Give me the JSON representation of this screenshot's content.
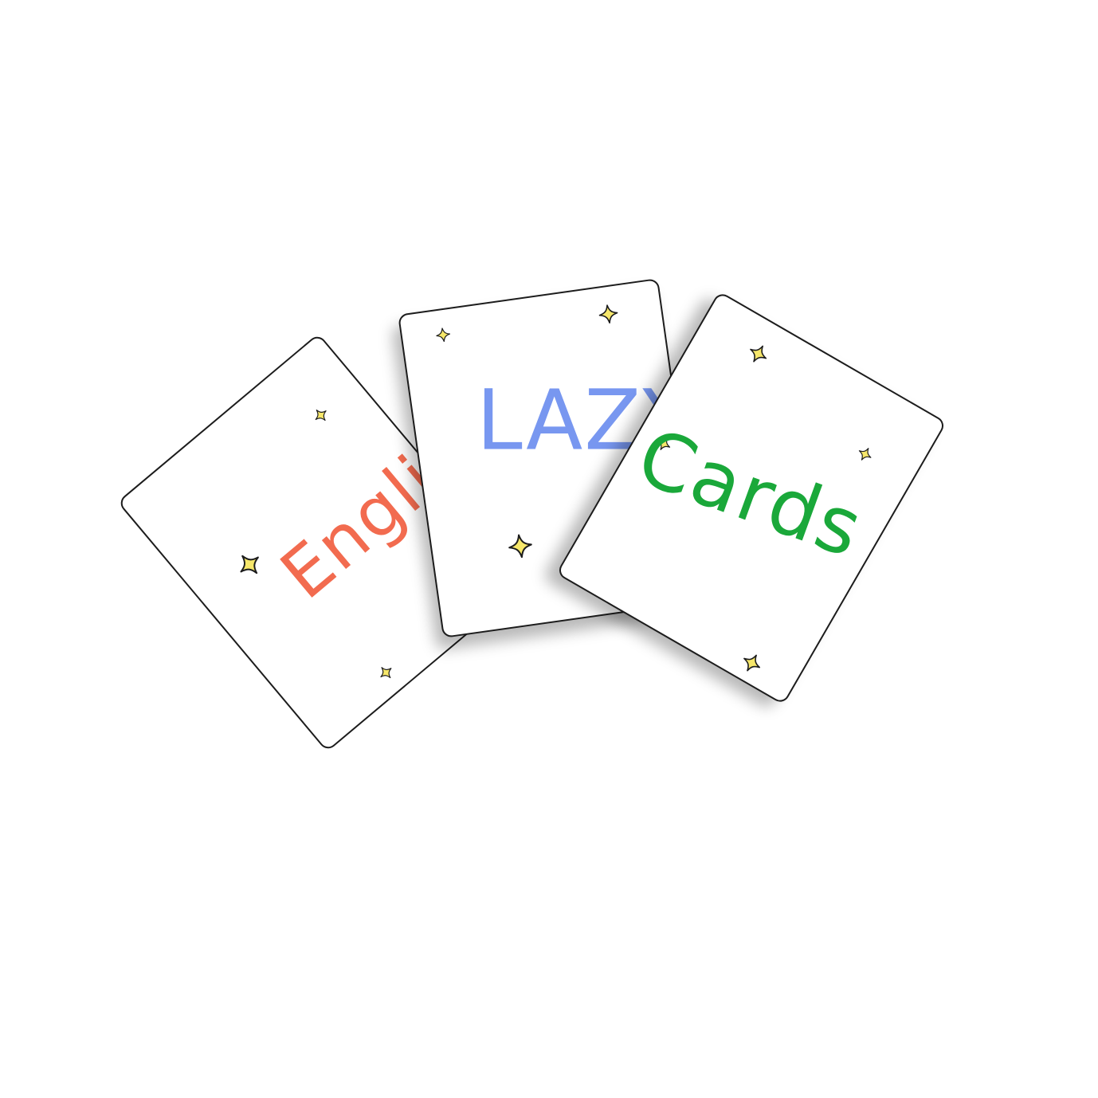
{
  "cards": {
    "left": {
      "word": "English",
      "color": "#f26b4f"
    },
    "middle": {
      "word": "LAZY",
      "color": "#7897f0"
    },
    "right": {
      "word": "Cards",
      "color": "#1aa83a"
    }
  },
  "sparkle_color": "#f6e76a",
  "sparkle_stroke": "#1c1c1c",
  "icons": [
    "sparkle-icon"
  ]
}
